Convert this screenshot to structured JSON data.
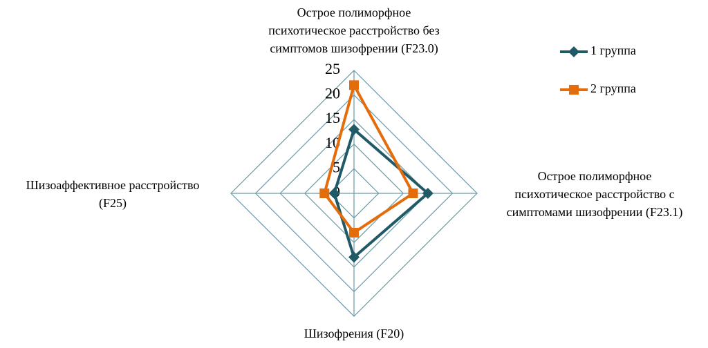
{
  "chart_data": {
    "type": "radar",
    "categories": [
      [
        "Острое полиморфное",
        "психотическое расстройство без",
        "симптомов шизофрении (F23.0)"
      ],
      [
        "Острое полиморфное",
        "психотическое расстройство с",
        "симптомами шизофрении (F23.1)"
      ],
      [
        "Шизофрения (F20)"
      ],
      [
        "Шизоаффективное расстройство",
        "(F25)"
      ]
    ],
    "series": [
      {
        "name": "1 группа",
        "color": "#215a67",
        "marker": "diamond",
        "values": [
          13,
          15,
          13,
          4
        ]
      },
      {
        "name": "2 группа",
        "color": "#e46c0a",
        "marker": "square",
        "values": [
          22,
          12,
          8,
          6
        ]
      }
    ],
    "ylim": [
      0,
      25
    ],
    "yticks": [
      0,
      5,
      10,
      15,
      20,
      25
    ],
    "grid": true,
    "legend": "right"
  }
}
